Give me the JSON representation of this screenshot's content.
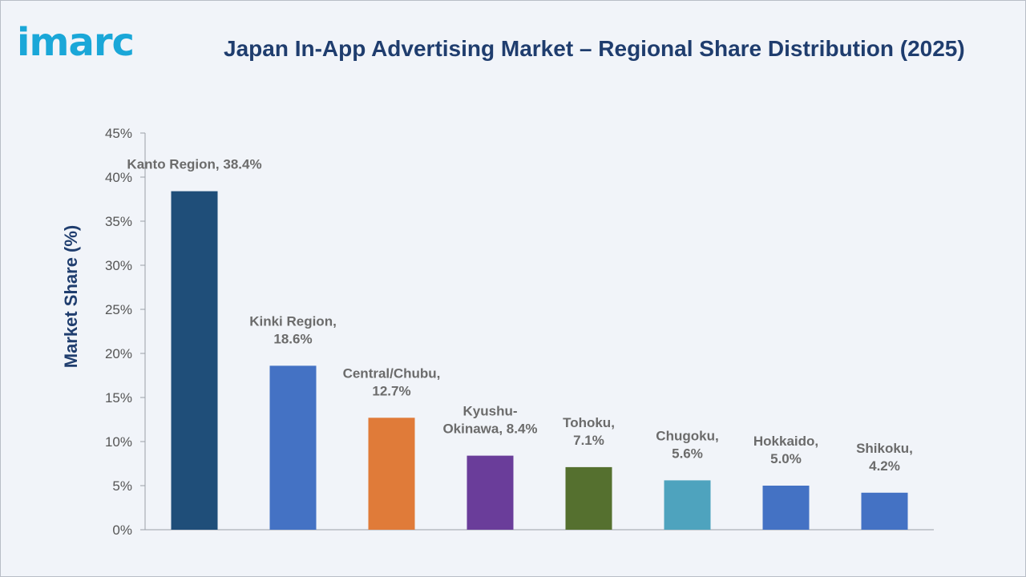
{
  "logo": {
    "text": "imarc"
  },
  "chart_data": {
    "type": "bar",
    "title": "Japan In-App Advertising Market – Regional Share Distribution (2025)",
    "ylabel": "Market Share (%)",
    "xlabel": "",
    "ylim": [
      0,
      45
    ],
    "yticks": [
      "0%",
      "5%",
      "10%",
      "15%",
      "20%",
      "25%",
      "30%",
      "35%",
      "40%",
      "45%"
    ],
    "grid": false,
    "categories": [
      "Kanto Region",
      "Kinki Region",
      "Central/Chubu",
      "Kyushu-Okinawa",
      "Tohoku",
      "Chugoku",
      "Hokkaido",
      "Shikoku"
    ],
    "values": [
      38.4,
      18.6,
      12.7,
      8.4,
      7.1,
      5.6,
      5.0,
      4.2
    ],
    "data_labels": [
      [
        "Kanto Region, 38.4%"
      ],
      [
        "Kinki Region,",
        "18.6%"
      ],
      [
        "Central/Chubu,",
        "12.7%"
      ],
      [
        "Kyushu-",
        "Okinawa, 8.4%"
      ],
      [
        "Tohoku,",
        "7.1%"
      ],
      [
        "Chugoku,",
        "5.6%"
      ],
      [
        "Hokkaido,",
        "5.0%"
      ],
      [
        "Shikoku,",
        "4.2%"
      ]
    ],
    "colors": [
      "#1f4e79",
      "#4472c4",
      "#e07b39",
      "#6a3d9a",
      "#55702f",
      "#4ea3be",
      "#4472c4",
      "#4472c4"
    ]
  }
}
